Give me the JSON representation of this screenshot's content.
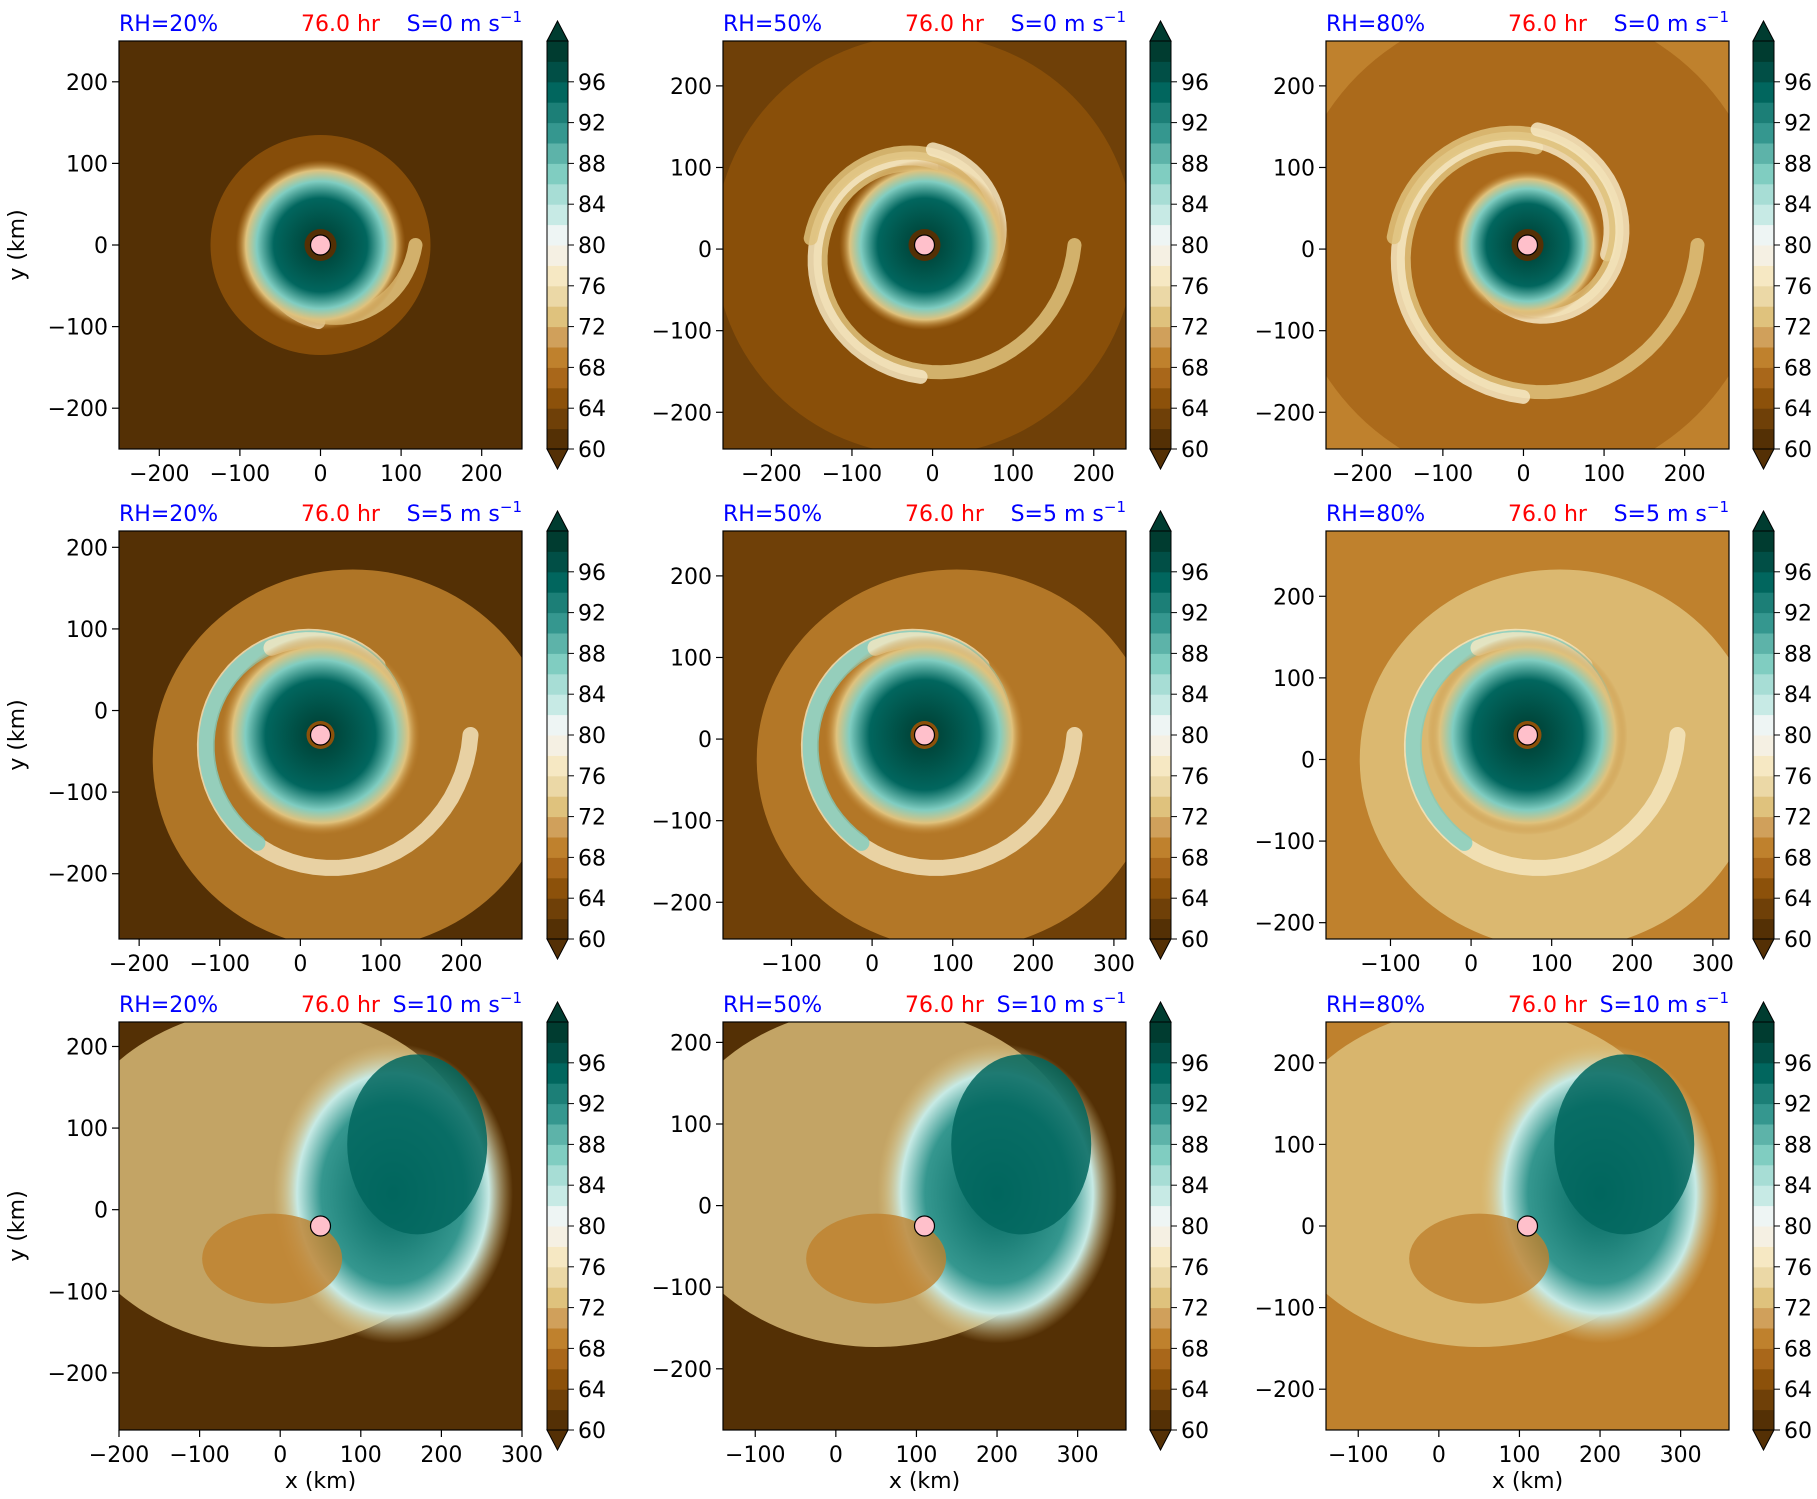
{
  "colors": {
    "title_rh": "#0000ff",
    "title_time": "#ff0000",
    "title_shear": "#0000ff",
    "center_marker_fill": "#ffc0cb",
    "colormap": "BrBG",
    "colorbar_levels": [
      "#543005",
      "#6f4008",
      "#8c510a",
      "#a9671a",
      "#bf812d",
      "#d0a05b",
      "#dfc27d",
      "#ebd8a6",
      "#f6e8c3",
      "#f5f0e3",
      "#eef5f4",
      "#c7eae5",
      "#a7ddd5",
      "#80cdc1",
      "#5db3a9",
      "#35978f",
      "#1c7f77",
      "#01665e",
      "#014f46",
      "#003c30"
    ]
  },
  "labels": {
    "xlabel": "x (km)",
    "ylabel": "y (km)"
  },
  "colorbar": {
    "ticks": [
      "60",
      "64",
      "68",
      "72",
      "76",
      "80",
      "84",
      "88",
      "92",
      "96"
    ],
    "vmin": 60,
    "vmax": 100,
    "extend": "both"
  },
  "panels": [
    {
      "rh": "RH=20%",
      "time": "76.0 hr",
      "shear": "S=0 m s",
      "shear_exp": "−1",
      "xlim": [
        -250,
        250
      ],
      "ylim": [
        -250,
        250
      ],
      "xticks": [
        "−200",
        "−100",
        "0",
        "100",
        "200"
      ],
      "yticks": [
        "−200",
        "−100",
        "0",
        "100",
        "200"
      ],
      "center": [
        0,
        0
      ]
    },
    {
      "rh": "RH=50%",
      "time": "76.0 hr",
      "shear": "S=0 m s",
      "shear_exp": "−1",
      "xlim": [
        -260,
        240
      ],
      "ylim": [
        -245,
        255
      ],
      "xticks": [
        "−200",
        "−100",
        "0",
        "100",
        "200"
      ],
      "yticks": [
        "−200",
        "−100",
        "0",
        "100",
        "200"
      ],
      "center": [
        -10,
        5
      ]
    },
    {
      "rh": "RH=80%",
      "time": "76.0 hr",
      "shear": "S=0 m s",
      "shear_exp": "−1",
      "xlim": [
        -245,
        255
      ],
      "ylim": [
        -245,
        255
      ],
      "xticks": [
        "−200",
        "−100",
        "0",
        "100",
        "200"
      ],
      "yticks": [
        "−200",
        "−100",
        "0",
        "100",
        "200"
      ],
      "center": [
        5,
        5
      ]
    },
    {
      "rh": "RH=20%",
      "time": "76.0 hr",
      "shear": "S=5 m s",
      "shear_exp": "−1",
      "xlim": [
        -225,
        275
      ],
      "ylim": [
        -280,
        220
      ],
      "xticks": [
        "−200",
        "−100",
        "0",
        "100",
        "200"
      ],
      "yticks": [
        "−200",
        "−100",
        "0",
        "100",
        "200"
      ],
      "center": [
        25,
        -30
      ]
    },
    {
      "rh": "RH=50%",
      "time": "76.0 hr",
      "shear": "S=5 m s",
      "shear_exp": "−1",
      "xlim": [
        -185,
        315
      ],
      "ylim": [
        -245,
        255
      ],
      "xticks": [
        "−100",
        "0",
        "100",
        "200",
        "300"
      ],
      "yticks": [
        "−200",
        "−100",
        "0",
        "100",
        "200"
      ],
      "center": [
        65,
        5
      ]
    },
    {
      "rh": "RH=80%",
      "time": "76.0 hr",
      "shear": "S=5 m s",
      "shear_exp": "−1",
      "xlim": [
        -180,
        320
      ],
      "ylim": [
        -220,
        280
      ],
      "xticks": [
        "−100",
        "0",
        "100",
        "200",
        "300"
      ],
      "yticks": [
        "−200",
        "−100",
        "0",
        "100",
        "200"
      ],
      "center": [
        70,
        30
      ]
    },
    {
      "rh": "RH=20%",
      "time": "76.0 hr",
      "shear": "S=10 m s",
      "shear_exp": "−1",
      "xlim": [
        -200,
        300
      ],
      "ylim": [
        -270,
        230
      ],
      "xticks": [
        "−200",
        "−100",
        "0",
        "100",
        "200",
        "300"
      ],
      "yticks": [
        "−200",
        "−100",
        "0",
        "100",
        "200"
      ],
      "center": [
        50,
        -20
      ]
    },
    {
      "rh": "RH=50%",
      "time": "76.0 hr",
      "shear": "S=10 m s",
      "shear_exp": "−1",
      "xlim": [
        -140,
        360
      ],
      "ylim": [
        -275,
        225
      ],
      "xticks": [
        "−100",
        "0",
        "100",
        "200",
        "300"
      ],
      "yticks": [
        "−200",
        "−100",
        "0",
        "100",
        "200"
      ],
      "center": [
        110,
        -25
      ]
    },
    {
      "rh": "RH=80%",
      "time": "76.0 hr",
      "shear": "S=10 m s",
      "shear_exp": "−1",
      "xlim": [
        -140,
        360
      ],
      "ylim": [
        -250,
        250
      ],
      "xticks": [
        "−100",
        "0",
        "100",
        "200",
        "300"
      ],
      "yticks": [
        "−200",
        "−100",
        "0",
        "100",
        "200"
      ],
      "center": [
        110,
        0
      ]
    }
  ],
  "chart_data": {
    "type": "heatmap",
    "layout": "3x3 grid of filled-contour panels",
    "xlabel": "x (km)",
    "ylabel": "y (km)",
    "colorbar_range": [
      60,
      100
    ],
    "colorbar_ticks": [
      60,
      64,
      68,
      72,
      76,
      80,
      84,
      88,
      92,
      96
    ],
    "storm_centers_km": [
      [
        0,
        0
      ],
      [
        -10,
        5
      ],
      [
        5,
        5
      ],
      [
        25,
        -30
      ],
      [
        65,
        5
      ],
      [
        70,
        30
      ],
      [
        50,
        -20
      ],
      [
        110,
        -25
      ],
      [
        110,
        0
      ]
    ]
  }
}
